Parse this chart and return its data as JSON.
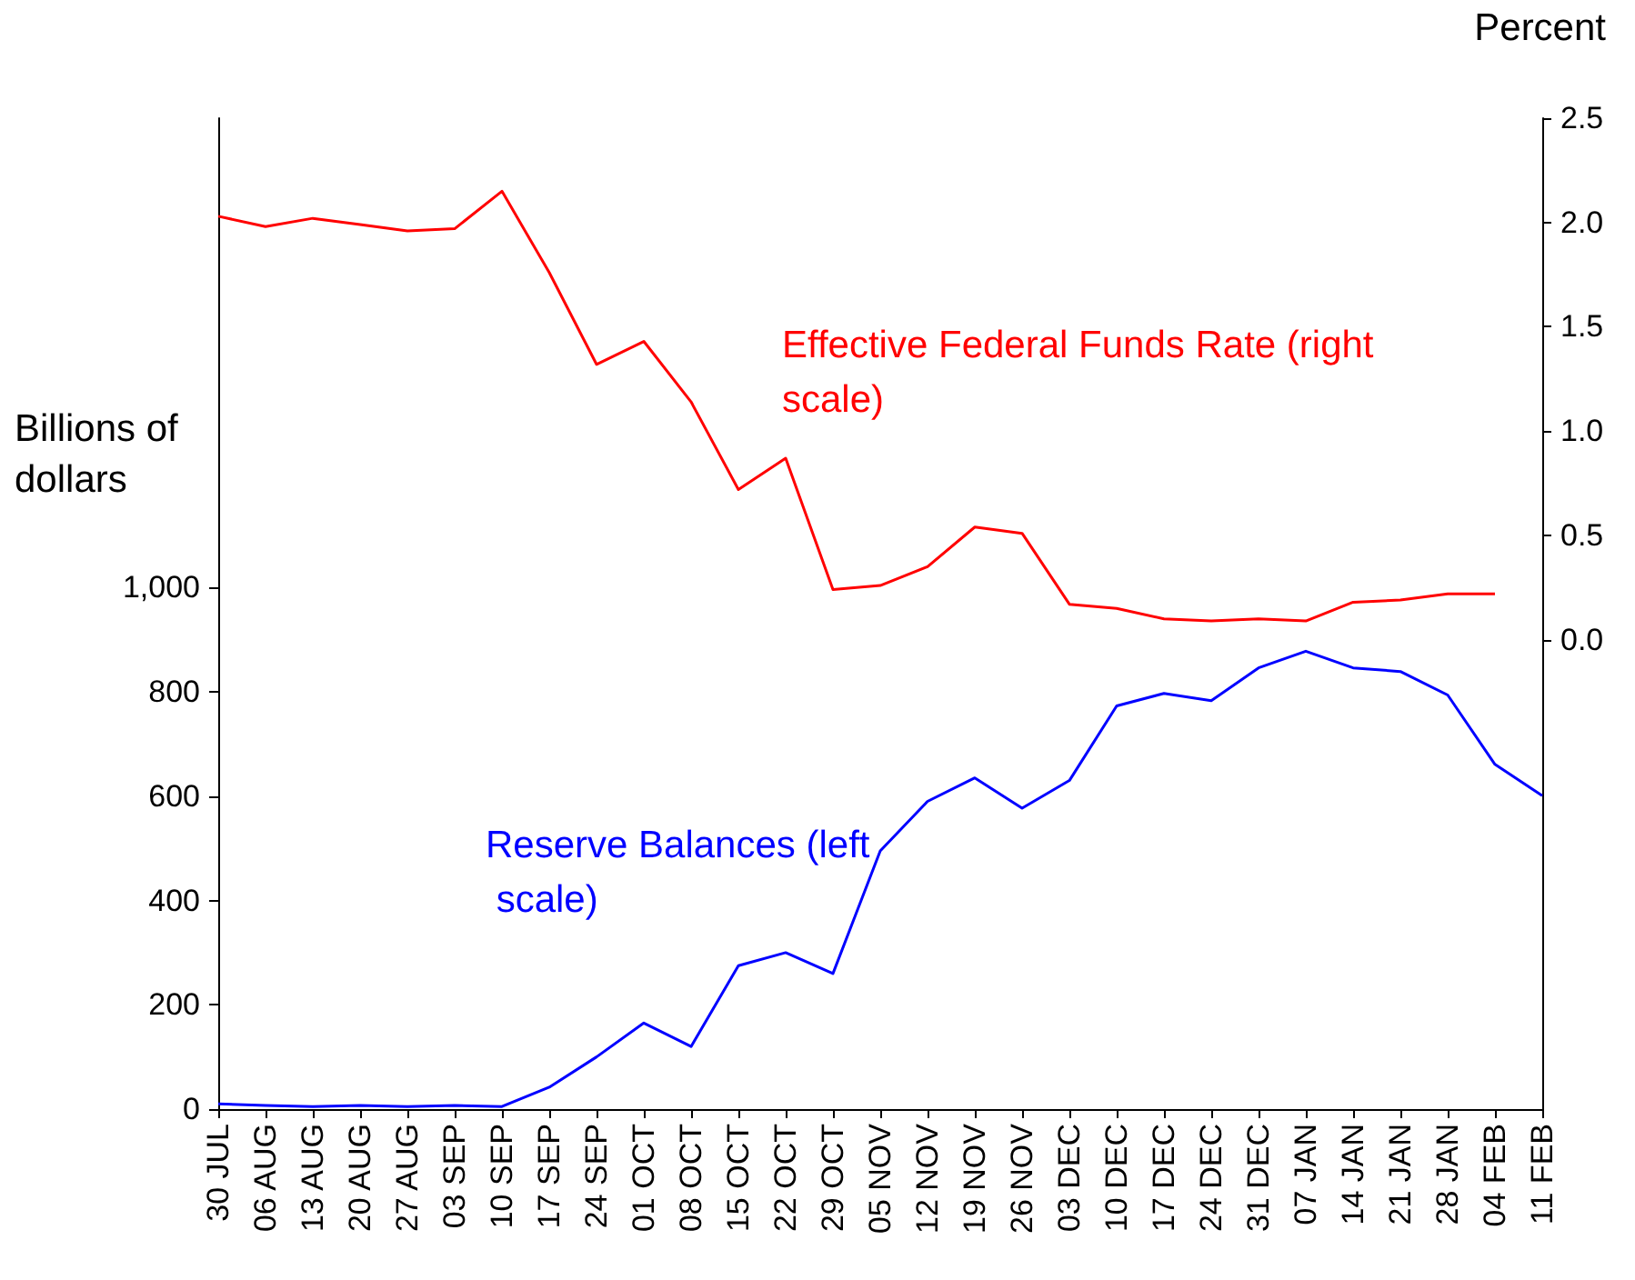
{
  "chart_data": {
    "type": "line",
    "ylabel": "Billions of dollars",
    "y2label": "Percent",
    "categories": [
      "30 JUL",
      "06 AUG",
      "13 AUG",
      "20 AUG",
      "27 AUG",
      "03 SEP",
      "10 SEP",
      "17 SEP",
      "24 SEP",
      "01 OCT",
      "08 OCT",
      "15 OCT",
      "22 OCT",
      "29 OCT",
      "05 NOV",
      "12 NOV",
      "19 NOV",
      "26 NOV",
      "03 DEC",
      "10 DEC",
      "17 DEC",
      "24 DEC",
      "31 DEC",
      "07 JAN",
      "14 JAN",
      "21 JAN",
      "28 JAN",
      "04 FEB",
      "11 FEB"
    ],
    "series": [
      {
        "name": "Effective Federal Funds Rate (right scale)",
        "color": "#ff0000",
        "axis": "y2",
        "values": [
          2.03,
          1.98,
          2.02,
          1.99,
          1.96,
          1.97,
          2.15,
          1.76,
          1.32,
          1.43,
          1.14,
          0.72,
          0.87,
          0.24,
          0.26,
          0.35,
          0.54,
          0.51,
          0.17,
          0.15,
          0.1,
          0.09,
          0.1,
          0.09,
          0.18,
          0.19,
          0.22,
          0.22,
          null
        ]
      },
      {
        "name": "Reserve Balances (left scale)",
        "color": "#0000ff",
        "values": [
          10,
          7,
          5,
          7,
          5,
          7,
          5,
          42,
          100,
          165,
          120,
          275,
          300,
          260,
          495,
          590,
          635,
          577,
          630,
          773,
          797,
          783,
          846,
          878,
          846,
          839,
          794,
          661,
          601
        ]
      }
    ],
    "ylim": [
      0,
      1900
    ],
    "yticks": [
      0,
      200,
      400,
      600,
      800,
      {
        "value": 1000,
        "label": "1,000"
      }
    ],
    "y2lim": [
      -2.25,
      2.5
    ],
    "y2ticks": [
      {
        "value": 0,
        "label": "0.0"
      },
      {
        "value": 0.5,
        "label": "0.5"
      },
      {
        "value": 1,
        "label": "1.0"
      },
      {
        "value": 1.5,
        "label": "1.5"
      },
      {
        "value": 2,
        "label": "2.0"
      },
      {
        "value": 2.5,
        "label": "2.5"
      }
    ],
    "grid": false,
    "legend": false,
    "marker": "none",
    "line_style": "solid"
  }
}
